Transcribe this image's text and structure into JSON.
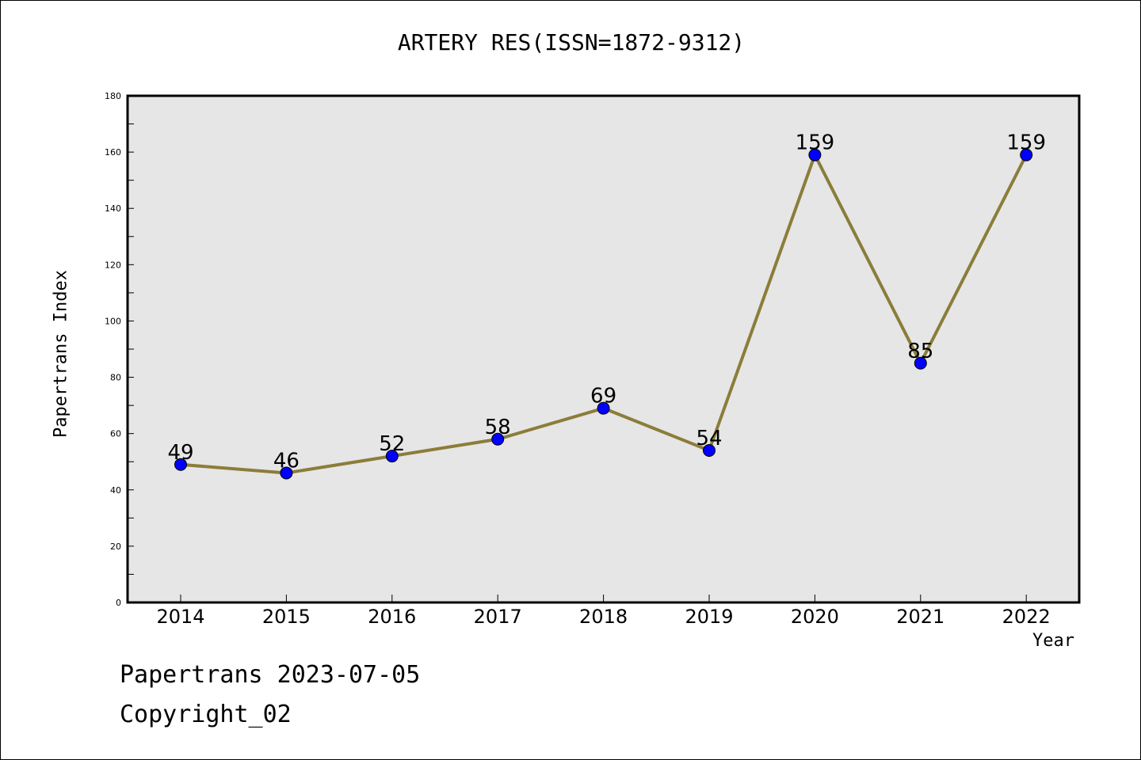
{
  "chart_data": {
    "type": "line",
    "title": "ARTERY RES(ISSN=1872-9312)",
    "xlabel": "Year",
    "ylabel": "Papertrans Index",
    "categories": [
      "2014",
      "2015",
      "2016",
      "2017",
      "2018",
      "2019",
      "2020",
      "2021",
      "2022"
    ],
    "values": [
      49,
      46,
      52,
      58,
      69,
      54,
      159,
      85,
      159
    ],
    "ylim": [
      0,
      180
    ],
    "yticks": [
      0,
      20,
      40,
      60,
      80,
      100,
      120,
      140,
      160,
      180
    ],
    "grid": false,
    "line_color": "#8b7d3a",
    "marker_color": "#0000ff",
    "plot_background": "#e6e6e6"
  },
  "footer": {
    "date_text": "Papertrans 2023-07-05",
    "copyright_text": "Copyright_02"
  }
}
